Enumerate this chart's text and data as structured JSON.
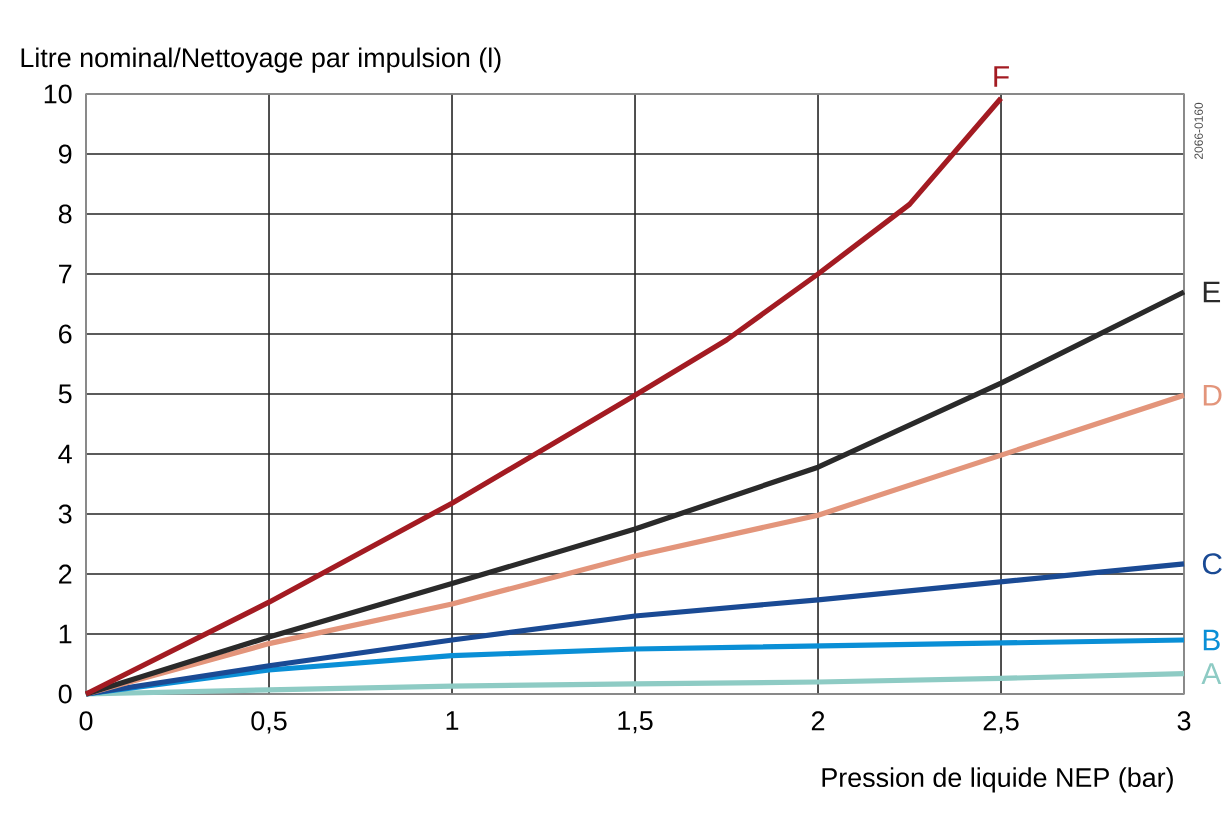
{
  "chart_data": {
    "type": "line",
    "ylabel": "Litre nominal/Nettoyage par impulsion (l)",
    "xlabel": "Pression de liquide NEP (bar)",
    "annotations": [
      "2066-0160"
    ],
    "xlim": [
      0,
      3
    ],
    "ylim": [
      0,
      10
    ],
    "xticks": [
      0,
      {
        "value": 0.5,
        "label": "0,5"
      },
      1,
      {
        "value": 1.5,
        "label": "1,5"
      },
      2,
      {
        "value": 2.5,
        "label": "2,5"
      },
      3
    ],
    "yticks": [
      0,
      1,
      2,
      3,
      4,
      5,
      6,
      7,
      8,
      9,
      10
    ],
    "grid": true,
    "series": [
      {
        "name": "A",
        "color": "#8ecbc4",
        "x": [
          0,
          0.5,
          1,
          1.5,
          2,
          2.5,
          3
        ],
        "values": [
          0,
          0.07,
          0.13,
          0.17,
          0.2,
          0.26,
          0.34
        ]
      },
      {
        "name": "B",
        "color": "#0a8fd6",
        "x": [
          0,
          0.5,
          1,
          1.5,
          2,
          2.5,
          3
        ],
        "values": [
          0,
          0.4,
          0.64,
          0.75,
          0.8,
          0.85,
          0.9
        ]
      },
      {
        "name": "C",
        "color": "#1a4a94",
        "x": [
          0,
          0.5,
          1,
          1.5,
          2,
          2.5,
          3
        ],
        "values": [
          0,
          0.47,
          0.9,
          1.3,
          1.57,
          1.87,
          2.17
        ]
      },
      {
        "name": "D",
        "color": "#e3957b",
        "x": [
          0,
          0.5,
          1,
          1.5,
          2,
          2.5,
          3
        ],
        "values": [
          0,
          0.84,
          1.5,
          2.3,
          2.98,
          3.98,
          4.98
        ]
      },
      {
        "name": "E",
        "color": "#2a2a2a",
        "x": [
          0,
          0.5,
          1,
          1.5,
          2,
          2.5,
          3
        ],
        "values": [
          0,
          0.95,
          1.84,
          2.75,
          3.78,
          5.18,
          6.7
        ]
      },
      {
        "name": "F",
        "color": "#a31b22",
        "x": [
          0,
          0.5,
          1,
          1.5,
          1.75,
          2,
          2.25,
          2.5
        ],
        "values": [
          0,
          1.53,
          3.18,
          4.98,
          5.9,
          7.0,
          8.16,
          9.93
        ]
      }
    ]
  }
}
